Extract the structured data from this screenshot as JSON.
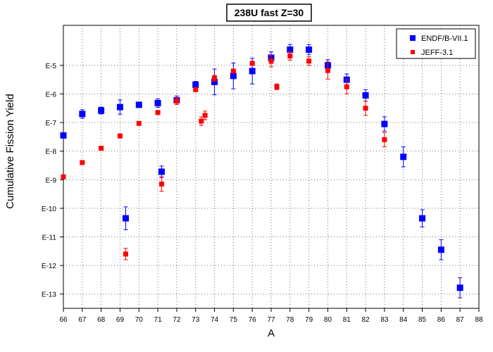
{
  "chart_data": {
    "type": "scatter",
    "title": "238U fast Z=30",
    "xlabel": "A",
    "ylabel": "Cumulative Fission Yield",
    "xlim": [
      66,
      88
    ],
    "ylim_log10": [
      -13.5,
      -3.6
    ],
    "y_scale": "log",
    "x_ticks": [
      66,
      67,
      68,
      69,
      70,
      71,
      72,
      73,
      74,
      75,
      76,
      77,
      78,
      79,
      80,
      81,
      82,
      83,
      84,
      85,
      86,
      87,
      88
    ],
    "y_ticks": [
      {
        "value": -5,
        "label": "E-5"
      },
      {
        "value": -6,
        "label": "E-6"
      },
      {
        "value": -7,
        "label": "E-7"
      },
      {
        "value": -8,
        "label": "E-8"
      },
      {
        "value": -9,
        "label": "E-9"
      },
      {
        "value": -10,
        "label": "E-10"
      },
      {
        "value": -11,
        "label": "E-11"
      },
      {
        "value": -12,
        "label": "E-12"
      },
      {
        "value": -13,
        "label": "E-13"
      }
    ],
    "grid": true,
    "legend_position": "top-right",
    "series": [
      {
        "name": "ENDF/B-VII.1",
        "color": "#0000ff",
        "marker": "square",
        "points": [
          {
            "x": 66,
            "y": -7.45,
            "err": 0
          },
          {
            "x": 67,
            "y": -6.7,
            "err": 0.15
          },
          {
            "x": 68,
            "y": -6.58,
            "err": 0.12
          },
          {
            "x": 69,
            "y": -6.46,
            "err": 0.25
          },
          {
            "x": 69.3,
            "y": -10.35,
            "err": 0.4
          },
          {
            "x": 70,
            "y": -6.38,
            "err": 0
          },
          {
            "x": 71,
            "y": -6.32,
            "err": 0.15
          },
          {
            "x": 71.2,
            "y": -8.72,
            "err": 0.2
          },
          {
            "x": 72,
            "y": -6.22,
            "err": 0.15
          },
          {
            "x": 73,
            "y": -5.68,
            "err": 0.12
          },
          {
            "x": 74,
            "y": -5.58,
            "err": 0.45
          },
          {
            "x": 75,
            "y": -5.37,
            "err": 0.45
          },
          {
            "x": 76,
            "y": -5.2,
            "err": 0.45
          },
          {
            "x": 77,
            "y": -4.73,
            "err": 0.2
          },
          {
            "x": 78,
            "y": -4.45,
            "err": 0.18
          },
          {
            "x": 79,
            "y": -4.45,
            "err": 0.18
          },
          {
            "x": 80,
            "y": -5.0,
            "err": 0.2
          },
          {
            "x": 81,
            "y": -5.5,
            "err": 0.2
          },
          {
            "x": 82,
            "y": -6.05,
            "err": 0.2
          },
          {
            "x": 83,
            "y": -7.05,
            "err": 0.25
          },
          {
            "x": 84,
            "y": -8.2,
            "err": 0.35
          },
          {
            "x": 85,
            "y": -10.35,
            "err": 0.3
          },
          {
            "x": 86,
            "y": -11.45,
            "err": 0.35
          },
          {
            "x": 87,
            "y": -12.78,
            "err": 0.35
          }
        ]
      },
      {
        "name": "JEFF-3.1",
        "color": "#ff0000",
        "marker": "square",
        "points": [
          {
            "x": 66,
            "y": -8.9,
            "err": 0
          },
          {
            "x": 67,
            "y": -8.4,
            "err": 0
          },
          {
            "x": 68,
            "y": -7.9,
            "err": 0
          },
          {
            "x": 69,
            "y": -7.47,
            "err": 0
          },
          {
            "x": 69.3,
            "y": -11.6,
            "err": 0.2
          },
          {
            "x": 70,
            "y": -7.03,
            "err": 0
          },
          {
            "x": 71,
            "y": -6.65,
            "err": 0
          },
          {
            "x": 71.2,
            "y": -9.15,
            "err": 0.25
          },
          {
            "x": 72,
            "y": -6.25,
            "err": 0.12
          },
          {
            "x": 73,
            "y": -5.85,
            "err": 0
          },
          {
            "x": 73.3,
            "y": -6.95,
            "err": 0.15
          },
          {
            "x": 73.5,
            "y": -6.75,
            "err": 0.15
          },
          {
            "x": 74,
            "y": -5.45,
            "err": 0.1
          },
          {
            "x": 75,
            "y": -5.2,
            "err": 0
          },
          {
            "x": 76,
            "y": -4.93,
            "err": 0
          },
          {
            "x": 77,
            "y": -4.85,
            "err": 0.2
          },
          {
            "x": 77.3,
            "y": -5.75,
            "err": 0.1
          },
          {
            "x": 78,
            "y": -4.67,
            "err": 0.15
          },
          {
            "x": 79,
            "y": -4.85,
            "err": 0.15
          },
          {
            "x": 80,
            "y": -5.18,
            "err": 0.3
          },
          {
            "x": 81,
            "y": -5.75,
            "err": 0.25
          },
          {
            "x": 82,
            "y": -6.5,
            "err": 0.25
          },
          {
            "x": 83,
            "y": -7.6,
            "err": 0.25
          }
        ]
      }
    ]
  }
}
